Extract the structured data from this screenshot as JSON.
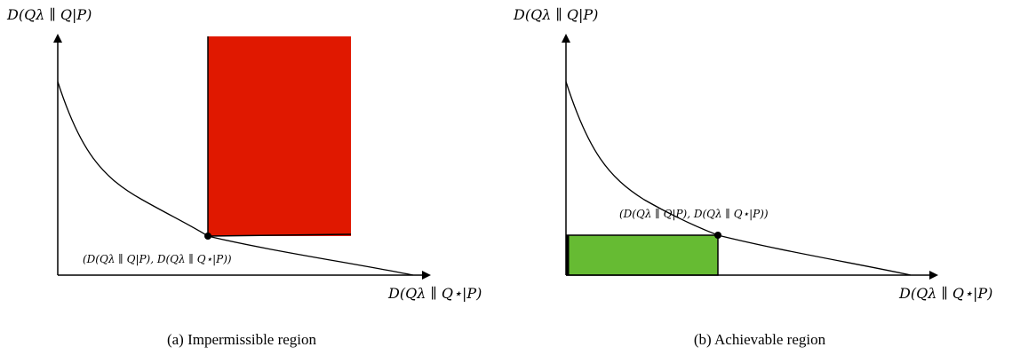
{
  "panel_a": {
    "y_axis_label": "D(Qλ ∥ Q|P)",
    "x_axis_label": "D(Qλ ∥ Q⋆|P)",
    "point_label": "(D(Qλ ∥ Q|P), D(Qλ ∥ Q⋆|P))",
    "caption": "(a) Impermissible region",
    "region_color": "#e01800"
  },
  "panel_b": {
    "y_axis_label": "D(Qλ ∥ Q|P)",
    "x_axis_label": "D(Qλ ∥ Q⋆|P)",
    "point_label": "(D(Qλ ∥ Q|P), D(Qλ ∥ Q⋆|P))",
    "caption": "(b) Achievable region",
    "region_color": "#66bb33"
  }
}
